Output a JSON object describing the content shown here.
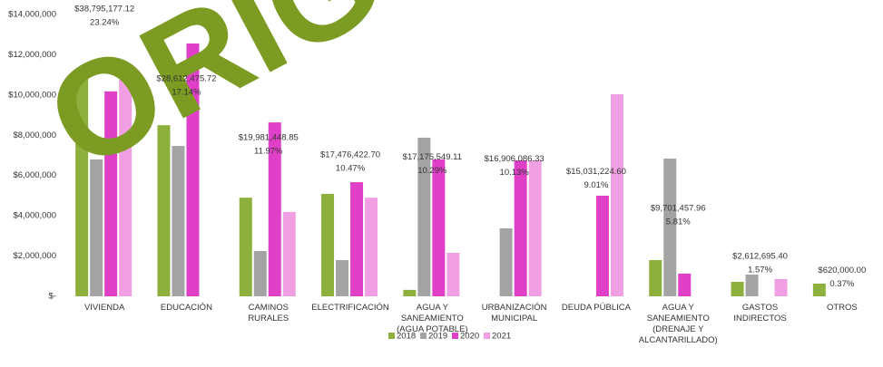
{
  "chart_data": {
    "type": "bar",
    "watermark": "ORIG",
    "categories": [
      "VIVIENDA",
      "EDUCACIÓN",
      "CAMINOS RURALES",
      "ELECTRIFICACIÓN",
      "AGUA Y\nSANEAMIENTO\n(AGUA POTABLE)",
      "URBANIZACIÓN\nMUNICIPAL",
      "DEUDA PÚBLICA",
      "AGUA Y\nSANEAMIENTO\n(DRENAJE Y\nALCANTARILLADO)",
      "GASTOS\nINDIRECTOS",
      "OTROS"
    ],
    "series": [
      {
        "name": "2018",
        "color": "#8db03c",
        "values": [
          11000000,
          8500000,
          4900000,
          5090000,
          320000,
          null,
          null,
          1800000,
          720000,
          630000
        ]
      },
      {
        "name": "2019",
        "color": "#a3a3a3",
        "values": [
          6800000,
          7470000,
          2250000,
          1800000,
          7880000,
          3380000,
          null,
          6840000,
          1080000,
          null
        ]
      },
      {
        "name": "2020",
        "color": "#e040c8",
        "values": [
          10180000,
          12560000,
          8640000,
          5670000,
          6800000,
          6750000,
          5000000,
          1130000,
          null,
          null
        ]
      },
      {
        "name": "2021",
        "color": "#f09fe2",
        "values": [
          10760000,
          null,
          4190000,
          4900000,
          2160000,
          6750000,
          10040000,
          null,
          860000,
          null
        ]
      }
    ],
    "totals": {
      "values": [
        38795177.12,
        28612475.72,
        19981448.85,
        17476422.7,
        17175549.11,
        16906086.33,
        15031224.6,
        9701457.96,
        2612695.4,
        620000.0
      ],
      "value_labels": [
        "$38,795,177.12",
        "$28,612,475.72",
        "$19,981,448.85",
        "$17,476,422.70",
        "$17,175,549.11",
        "$16,906,086.33",
        "$15,031,224.60",
        "$9,701,457.96",
        "$2,612,695.40",
        "$620,000.00"
      ]
    },
    "shares": {
      "values": [
        23.24,
        17.14,
        11.97,
        10.47,
        10.29,
        10.13,
        9.01,
        5.81,
        1.57,
        0.37
      ],
      "value_labels": [
        "23.24%",
        "17.14%",
        "11.97%",
        "10.47%",
        "10.29%",
        "10.13%",
        "9.01%",
        "5.81%",
        "1.57%",
        "0.37%"
      ]
    },
    "ylim": [
      0,
      14000000
    ],
    "yticks": [
      {
        "value": 0,
        "label": "$-"
      },
      {
        "value": 2000000,
        "label": "$2,000,000"
      },
      {
        "value": 4000000,
        "label": "$4,000,000"
      },
      {
        "value": 6000000,
        "label": "$6,000,000"
      },
      {
        "value": 8000000,
        "label": "$8,000,000"
      },
      {
        "value": 10000000,
        "label": "$10,000,000"
      },
      {
        "value": 12000000,
        "label": "$12,000,000"
      },
      {
        "value": 14000000,
        "label": "$14,000,000"
      }
    ]
  }
}
